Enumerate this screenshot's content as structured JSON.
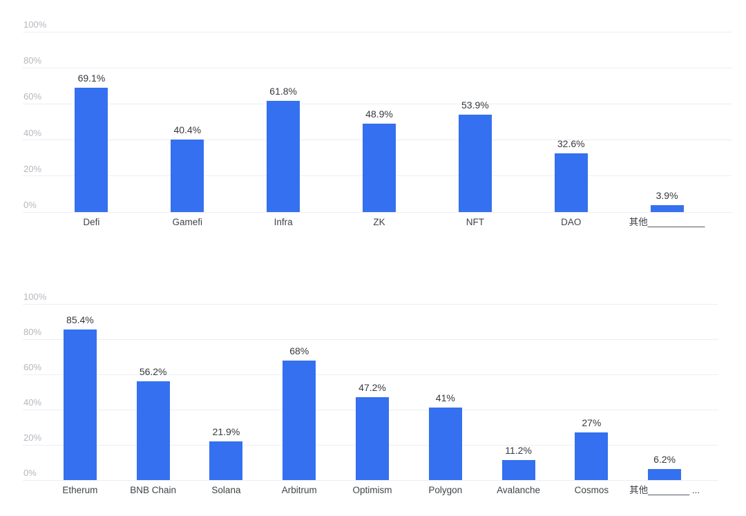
{
  "page": {
    "background": "#ffffff"
  },
  "colors": {
    "bar": "#3470f0",
    "gridline": "#ebeef4",
    "axis_tick_label": "#b3b7be",
    "value_label": "#35383d",
    "category_label": "#3f4247"
  },
  "chart_data": [
    {
      "type": "bar",
      "title": "",
      "categories": [
        "Defi",
        "Gamefi",
        "Infra",
        "ZK",
        "NFT",
        "DAO",
        "其他___________"
      ],
      "values": [
        69.1,
        40.4,
        61.8,
        48.9,
        53.9,
        32.6,
        3.9
      ],
      "value_labels": [
        "69.1%",
        "40.4%",
        "61.8%",
        "48.9%",
        "53.9%",
        "32.6%",
        "3.9%"
      ],
      "ylim": [
        0,
        100
      ],
      "yticks_values": [
        100,
        80,
        60,
        40,
        20,
        0
      ],
      "yticks_labels": [
        "100%",
        "80%",
        "60%",
        "40%",
        "20%",
        "0%"
      ],
      "grid": true,
      "legend": "none"
    },
    {
      "type": "bar",
      "title": "",
      "categories": [
        "Etherum",
        "BNB Chain",
        "Solana",
        "Arbitrum",
        "Optimism",
        "Polygon",
        "Avalanche",
        "Cosmos",
        "其他________ ..."
      ],
      "values": [
        85.4,
        56.2,
        21.9,
        68,
        47.2,
        41,
        11.2,
        27,
        6.2
      ],
      "value_labels": [
        "85.4%",
        "56.2%",
        "21.9%",
        "68%",
        "47.2%",
        "41%",
        "11.2%",
        "27%",
        "6.2%"
      ],
      "ylim": [
        0,
        100
      ],
      "yticks_values": [
        100,
        80,
        60,
        40,
        20,
        0
      ],
      "yticks_labels": [
        "100%",
        "80%",
        "60%",
        "40%",
        "20%",
        "0%"
      ],
      "grid": true,
      "legend": "none"
    }
  ]
}
